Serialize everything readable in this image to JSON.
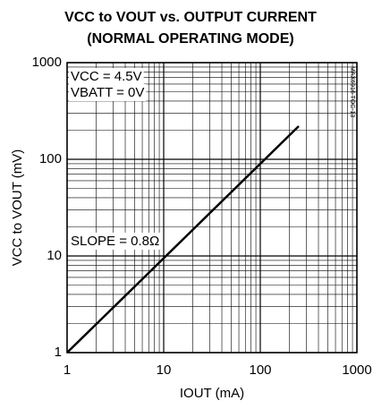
{
  "chart_data": {
    "type": "line",
    "title": "VCC to VOUT vs. OUTPUT CURRENT",
    "subtitle": "(NORMAL OPERATING MODE)",
    "x_label": "IOUT (mA)",
    "y_label": "VCC to VOUT (mV)",
    "annotations": [
      "VCC = 4.5V",
      "VBATT = 0V",
      "SLOPE = 0.8Ω",
      "MAX6916 TOC-13"
    ],
    "x": [
      1,
      250
    ],
    "series": [
      {
        "name": "VCC to VOUT",
        "color": "#000000",
        "values": [
          1,
          220
        ]
      }
    ],
    "xlim": [
      1,
      1000
    ],
    "xticks": [
      1,
      10,
      100,
      1000
    ],
    "ylim": [
      1,
      1000
    ],
    "yticks": [
      1,
      10,
      100,
      1000
    ],
    "log_x": true,
    "log_y": true,
    "grid": true,
    "minor_grid": true
  }
}
